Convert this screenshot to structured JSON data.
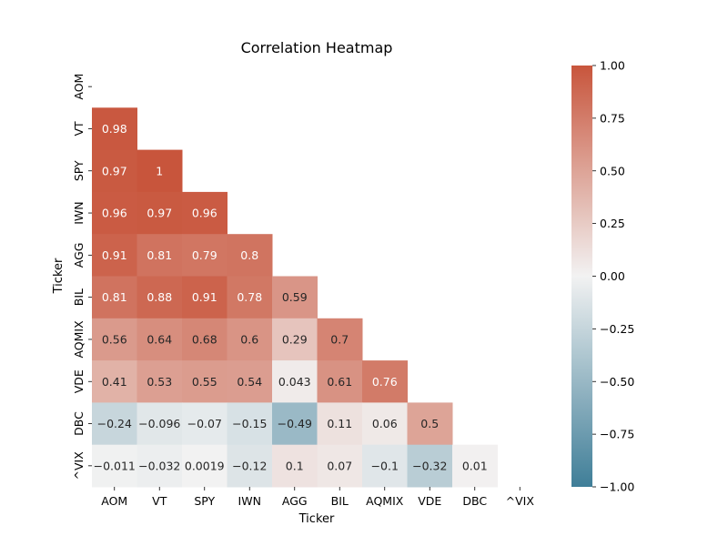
{
  "chart_data": {
    "type": "heatmap",
    "title": "Correlation Heatmap",
    "xlabel": "Ticker",
    "ylabel": "Ticker",
    "x_categories": [
      "AOM",
      "VT",
      "SPY",
      "IWN",
      "AGG",
      "BIL",
      "AQMIX",
      "VDE",
      "DBC",
      "^VIX"
    ],
    "y_categories": [
      "AOM",
      "VT",
      "SPY",
      "IWN",
      "AGG",
      "BIL",
      "AQMIX",
      "VDE",
      "DBC",
      "^VIX"
    ],
    "masked": "upper triangle including diagonal",
    "values": [
      [
        null,
        null,
        null,
        null,
        null,
        null,
        null,
        null,
        null,
        null
      ],
      [
        0.98,
        null,
        null,
        null,
        null,
        null,
        null,
        null,
        null,
        null
      ],
      [
        0.97,
        1,
        null,
        null,
        null,
        null,
        null,
        null,
        null,
        null
      ],
      [
        0.96,
        0.97,
        0.96,
        null,
        null,
        null,
        null,
        null,
        null,
        null
      ],
      [
        0.91,
        0.81,
        0.79,
        0.8,
        null,
        null,
        null,
        null,
        null,
        null
      ],
      [
        0.81,
        0.88,
        0.91,
        0.78,
        0.59,
        null,
        null,
        null,
        null,
        null
      ],
      [
        0.56,
        0.64,
        0.68,
        0.6,
        0.29,
        0.7,
        null,
        null,
        null,
        null
      ],
      [
        0.41,
        0.53,
        0.55,
        0.54,
        0.043,
        0.61,
        0.76,
        null,
        null,
        null
      ],
      [
        -0.24,
        -0.096,
        -0.07,
        -0.15,
        -0.49,
        0.11,
        0.06,
        0.5,
        null,
        null
      ],
      [
        -0.011,
        -0.032,
        0.0019,
        -0.12,
        0.1,
        0.07,
        -0.1,
        -0.32,
        0.01,
        null
      ]
    ],
    "vmin": -1,
    "vmax": 1,
    "colorbar_ticks": [
      "1.00",
      "0.75",
      "0.50",
      "0.25",
      "0.00",
      "−0.25",
      "−0.50",
      "−0.75",
      "−1.00"
    ],
    "colormap": {
      "negative": "#3f7e98",
      "center": "#f2f2f2",
      "positive": "#c8553c"
    },
    "grid": false,
    "legend": "colorbar right"
  }
}
